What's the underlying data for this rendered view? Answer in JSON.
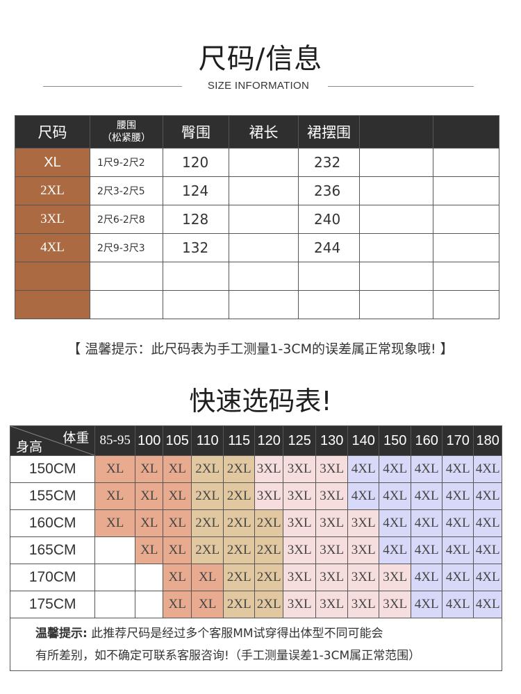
{
  "header": {
    "title": "尺码/信息",
    "subtitle": "SIZE INFORMATION"
  },
  "size_table": {
    "columns": [
      "尺码",
      "腰围\n（松紧腰）",
      "臀围",
      "裙长",
      "裙摆围",
      "",
      ""
    ],
    "rows": [
      {
        "size": "XL",
        "waist": "1尺9-2尺2",
        "hip": "120",
        "length": "",
        "hem": "232",
        "c6": "",
        "c7": ""
      },
      {
        "size": "2XL",
        "waist": "2尺3-2尺5",
        "hip": "124",
        "length": "",
        "hem": "236",
        "c6": "",
        "c7": ""
      },
      {
        "size": "3XL",
        "waist": "2尺6-2尺8",
        "hip": "128",
        "length": "",
        "hem": "240",
        "c6": "",
        "c7": ""
      },
      {
        "size": "4XL",
        "waist": "2尺9-3尺3",
        "hip": "132",
        "length": "",
        "hem": "244",
        "c6": "",
        "c7": ""
      },
      {
        "size": "",
        "waist": "",
        "hip": "",
        "length": "",
        "hem": "",
        "c6": "",
        "c7": ""
      },
      {
        "size": "",
        "waist": "",
        "hip": "",
        "length": "",
        "hem": "",
        "c6": "",
        "c7": ""
      }
    ]
  },
  "tip1": "【 温馨提示：此尺码表为手工测量1-3CM的误差属正常现象哦! 】",
  "quick_title": "快速选码表!",
  "quick_table": {
    "corner_weight": "体重",
    "corner_height": "身高",
    "weights": [
      "85-95",
      "100",
      "105",
      "110",
      "115",
      "120",
      "125",
      "130",
      "140",
      "150",
      "160",
      "170",
      "180"
    ],
    "rows": [
      {
        "height": "150CM",
        "sizes": [
          "XL",
          "XL",
          "XL",
          "2XL",
          "2XL",
          "3XL",
          "3XL",
          "3XL",
          "4XL",
          "4XL",
          "4XL",
          "4XL",
          "4XL"
        ]
      },
      {
        "height": "155CM",
        "sizes": [
          "XL",
          "XL",
          "XL",
          "2XL",
          "2XL",
          "3XL",
          "3XL",
          "3XL",
          "4XL",
          "4XL",
          "4XL",
          "4XL",
          "4XL"
        ]
      },
      {
        "height": "160CM",
        "sizes": [
          "XL",
          "XL",
          "XL",
          "2XL",
          "2XL",
          "2XL",
          "3XL",
          "3XL",
          "3XL",
          "4XL",
          "4XL",
          "4XL",
          "4XL"
        ]
      },
      {
        "height": "165CM",
        "sizes": [
          "",
          "XL",
          "XL",
          "2XL",
          "2XL",
          "2XL",
          "3XL",
          "3XL",
          "3XL",
          "4XL",
          "4XL",
          "4XL",
          "4XL"
        ]
      },
      {
        "height": "170CM",
        "sizes": [
          "",
          "",
          "XL",
          "XL",
          "2XL",
          "2XL",
          "3XL",
          "3XL",
          "3XL",
          "3XL",
          "4XL",
          "4XL",
          "4XL"
        ]
      },
      {
        "height": "175CM",
        "sizes": [
          "",
          "",
          "XL",
          "XL",
          "2XL",
          "2XL",
          "3XL",
          "3XL",
          "3XL",
          "3XL",
          "4XL",
          "4XL",
          "4XL"
        ]
      }
    ],
    "tip_label": "温馨提示:",
    "tip_line1": " 此推荐尺码是经过多个客服MM试穿得出体型不同可能会",
    "tip_line2": "有所差别，如不确定可联系客服咨询!（手工测量误差1-3CM属正常范围）"
  },
  "colors": {
    "header_bg": "#2f2f2f",
    "size_cell": "#ab6a42",
    "XL": "#e8ab8f",
    "2XL": "#e2c8a0",
    "3XL": "#f6dede",
    "4XL": "#d8d8f8"
  }
}
